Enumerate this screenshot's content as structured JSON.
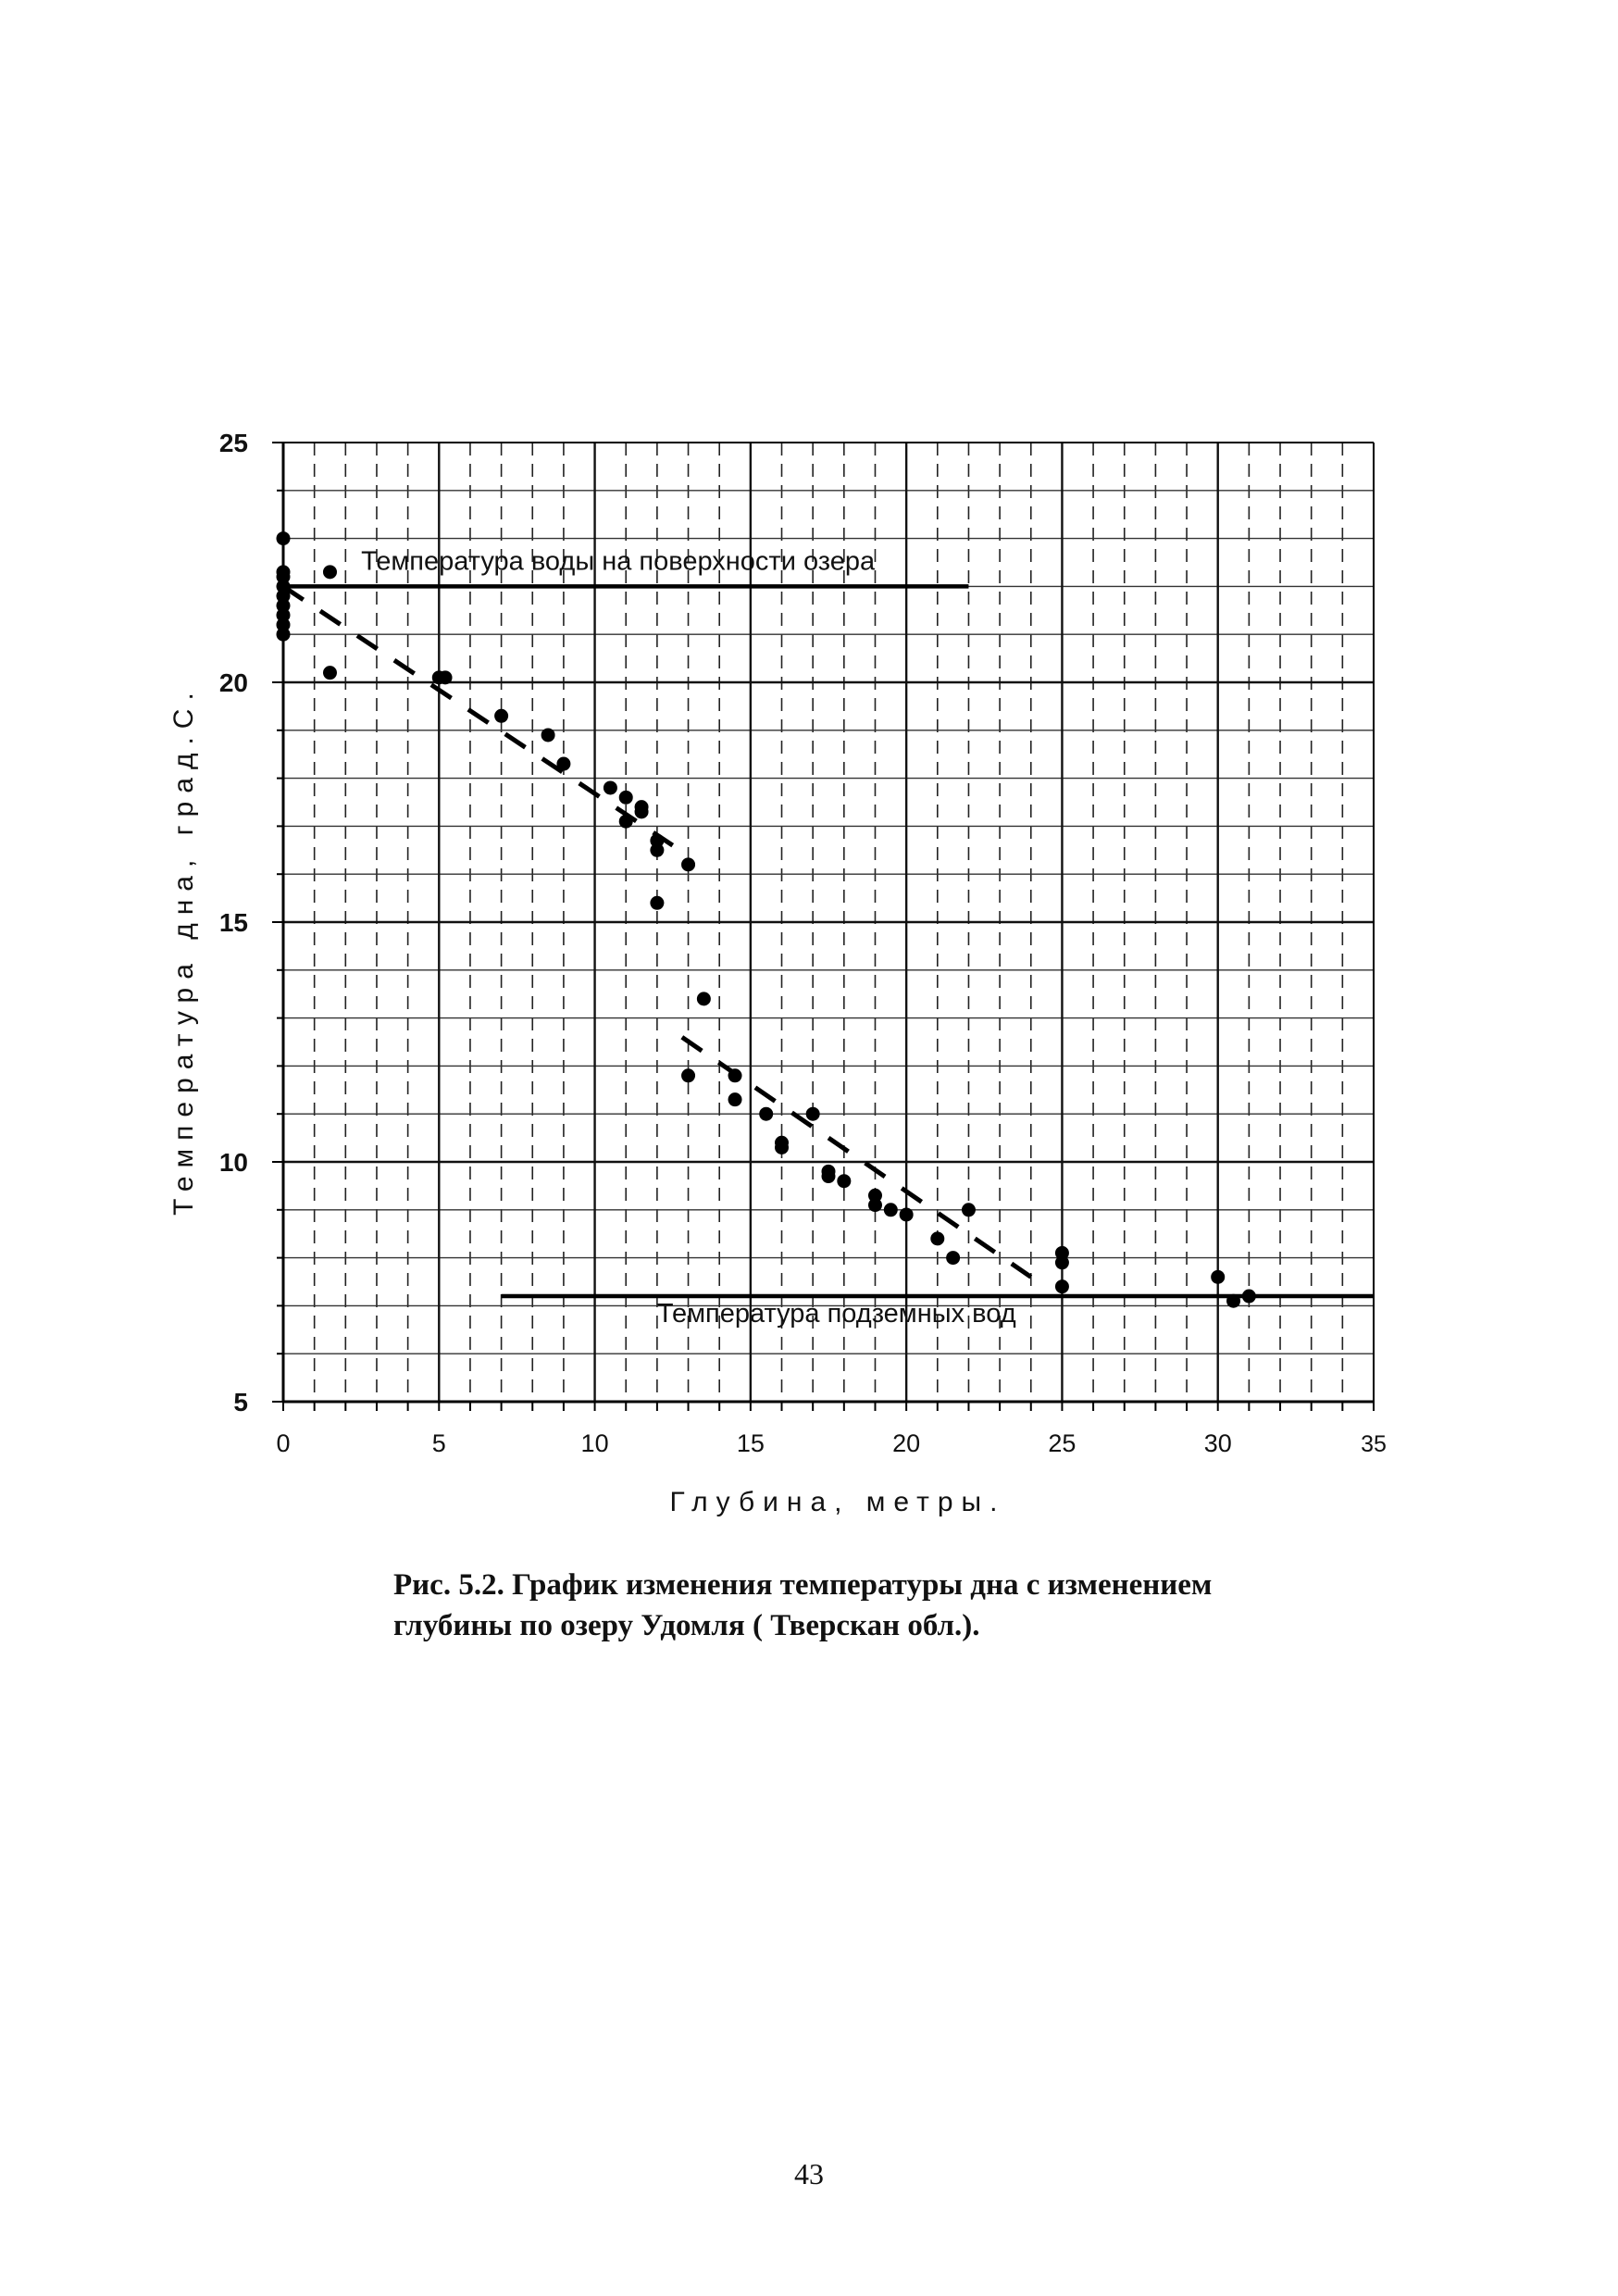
{
  "chart_data": {
    "type": "scatter",
    "xlabel": "Глубина, метры.",
    "ylabel": "Температура дна, град.С.",
    "xlim": [
      0,
      35
    ],
    "ylim": [
      5,
      25
    ],
    "x_ticks": [
      "0",
      "5",
      "10",
      "15",
      "20",
      "25",
      "30",
      "35"
    ],
    "y_ticks": [
      "5",
      "10",
      "15",
      "20",
      "25"
    ],
    "grid": true,
    "points": [
      [
        0,
        23.0
      ],
      [
        0,
        22.3
      ],
      [
        0,
        22.2
      ],
      [
        0,
        22.0
      ],
      [
        0,
        21.8
      ],
      [
        0,
        21.6
      ],
      [
        0,
        21.4
      ],
      [
        0,
        21.2
      ],
      [
        0,
        21.0
      ],
      [
        1.5,
        22.3
      ],
      [
        1.5,
        20.2
      ],
      [
        5,
        20.1
      ],
      [
        5.2,
        20.1
      ],
      [
        7,
        19.3
      ],
      [
        8.5,
        18.9
      ],
      [
        9,
        18.3
      ],
      [
        10.5,
        17.8
      ],
      [
        11,
        17.6
      ],
      [
        11,
        17.1
      ],
      [
        11.5,
        17.4
      ],
      [
        11.5,
        17.3
      ],
      [
        12,
        16.7
      ],
      [
        12,
        16.5
      ],
      [
        12,
        15.4
      ],
      [
        13,
        16.2
      ],
      [
        13,
        11.8
      ],
      [
        13.5,
        13.4
      ],
      [
        14.5,
        11.8
      ],
      [
        14.5,
        11.3
      ],
      [
        15.5,
        11.0
      ],
      [
        16,
        10.4
      ],
      [
        16,
        10.3
      ],
      [
        17,
        11.0
      ],
      [
        17.5,
        9.8
      ],
      [
        17.5,
        9.7
      ],
      [
        18,
        9.6
      ],
      [
        19,
        9.3
      ],
      [
        19,
        9.1
      ],
      [
        19.5,
        9.0
      ],
      [
        20,
        8.9
      ],
      [
        21,
        8.4
      ],
      [
        21.5,
        8.0
      ],
      [
        22,
        9.0
      ],
      [
        25,
        8.1
      ],
      [
        25,
        7.9
      ],
      [
        25,
        7.4
      ],
      [
        30,
        7.6
      ],
      [
        30.5,
        7.1
      ],
      [
        31,
        7.2
      ]
    ],
    "series": [
      {
        "segments": [
          [
            [
              0,
              22.0
            ],
            [
              12.5,
              16.6
            ]
          ],
          [
            [
              12.8,
              12.6
            ],
            [
              24,
              7.6
            ]
          ]
        ]
      }
    ],
    "reference_lines": [
      {
        "label": "Температура воды на поверхности озера",
        "y": 22.0,
        "x_range": [
          0,
          22
        ]
      },
      {
        "label": "Температура подземных вод",
        "y": 7.2,
        "x_range": [
          7,
          35
        ]
      }
    ]
  },
  "caption": {
    "line1": "Рис. 5.2.   График изменения температуры дна с изменением",
    "line2": "глубины по озеру Удомля ( Тверскан обл.)."
  },
  "page_number": "43"
}
